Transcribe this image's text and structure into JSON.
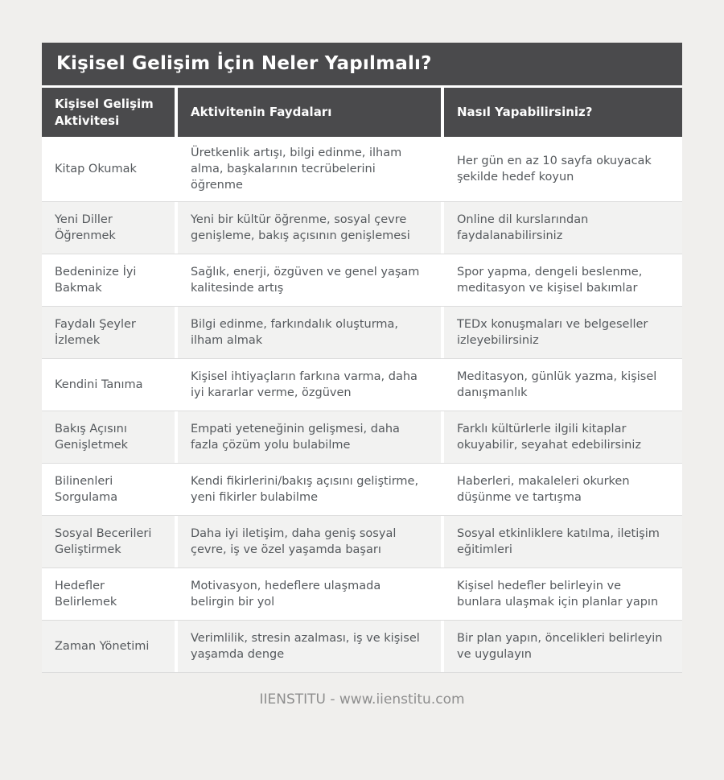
{
  "page": {
    "title": "Kişisel Gelişim İçin Neler Yapılmalı?",
    "footer": "IIENSTITU - www.iienstitu.com"
  },
  "table": {
    "columns": [
      "Kişisel Gelişim Aktivitesi",
      "Aktivitenin Faydaları",
      "Nasıl Yapabilirsiniz?"
    ],
    "rows": [
      {
        "activity": "Kitap Okumak",
        "benefits": "Üretkenlik artışı, bilgi edinme, ilham alma, başkalarının tecrübelerini öğrenme",
        "how": "Her gün en az 10 sayfa okuyacak şekilde hedef koyun"
      },
      {
        "activity": "Yeni Diller Öğrenmek",
        "benefits": "Yeni bir kültür öğrenme, sosyal çevre genişleme, bakış açısının genişlemesi",
        "how": "Online dil kurslarından faydalanabilirsiniz"
      },
      {
        "activity": "Bedeninize İyi Bakmak",
        "benefits": "Sağlık, enerji, özgüven ve genel yaşam kalitesinde artış",
        "how": "Spor yapma, dengeli beslenme, meditasyon ve kişisel bakımlar"
      },
      {
        "activity": "Faydalı Şeyler İzlemek",
        "benefits": "Bilgi edinme, farkındalık oluşturma, ilham almak",
        "how": "TEDx konuşmaları ve belgeseller izleyebilirsiniz"
      },
      {
        "activity": "Kendini Tanıma",
        "benefits": "Kişisel ihtiyaçların farkına varma, daha iyi kararlar verme, özgüven",
        "how": "Meditasyon, günlük yazma, kişisel danışmanlık"
      },
      {
        "activity": "Bakış Açısını Genişletmek",
        "benefits": "Empati yeteneğinin gelişmesi, daha fazla çözüm yolu bulabilme",
        "how": "Farklı kültürlerle ilgili kitaplar okuyabilir, seyahat edebilirsiniz"
      },
      {
        "activity": "Bilinenleri Sorgulama",
        "benefits": "Kendi fikirlerini/bakış açısını geliştirme, yeni fikirler bulabilme",
        "how": "Haberleri, makaleleri okurken düşünme ve tartışma"
      },
      {
        "activity": "Sosyal Becerileri Geliştirmek",
        "benefits": "Daha iyi iletişim, daha geniş sosyal çevre, iş ve özel yaşamda başarı",
        "how": "Sosyal etkinliklere katılma, iletişim eğitimleri"
      },
      {
        "activity": "Hedefler Belirlemek",
        "benefits": "Motivasyon, hedeflere ulaşmada belirgin bir yol",
        "how": "Kişisel hedefler belirleyin ve bunlara ulaşmak için planlar yapın"
      },
      {
        "activity": "Zaman Yönetimi",
        "benefits": "Verimlilik, stresin azalması, iş ve kişisel yaşamda denge",
        "how": "Bir plan yapın, öncelikleri belirleyin ve uygulayın"
      }
    ]
  },
  "colors": {
    "page_background": "#f0efed",
    "header_background": "#4a4a4c",
    "header_text": "#ffffff",
    "alt_row_background": "#f2f2f1",
    "row_border": "#dcdcdc",
    "body_text": "#55595d",
    "footer_text": "#8e8e8e"
  }
}
